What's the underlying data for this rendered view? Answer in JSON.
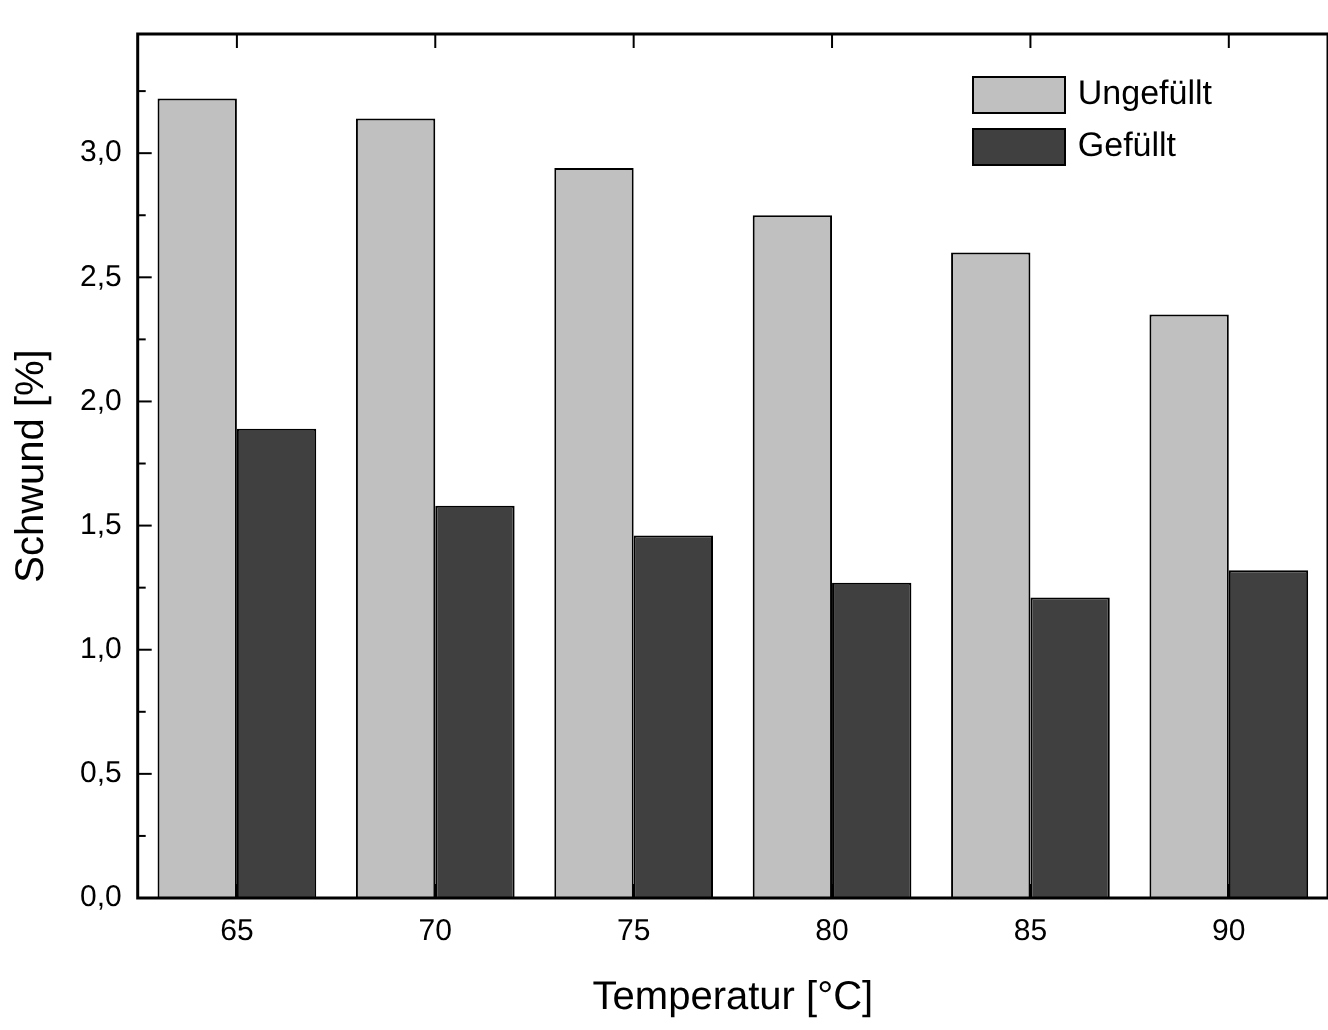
{
  "chart_data": {
    "type": "bar",
    "xlabel": "Temperatur [°C]",
    "ylabel": "Schwund [%]",
    "categories": [
      "65",
      "70",
      "75",
      "80",
      "85",
      "90"
    ],
    "series": [
      {
        "name": "Ungefüllt",
        "color": "#c0c0c0",
        "values": [
          3.22,
          3.14,
          2.94,
          2.75,
          2.6,
          2.35
        ]
      },
      {
        "name": "Gefüllt",
        "color": "#404040",
        "values": [
          1.89,
          1.58,
          1.46,
          1.27,
          1.21,
          1.32
        ]
      }
    ],
    "ylim": [
      0,
      3.48
    ],
    "yticks": [
      {
        "value": 0,
        "label": "0,0"
      },
      {
        "value": 0.25,
        "label": null
      },
      {
        "value": 0.5,
        "label": "0,5"
      },
      {
        "value": 0.75,
        "label": null
      },
      {
        "value": 1,
        "label": "1,0"
      },
      {
        "value": 1.25,
        "label": null
      },
      {
        "value": 1.5,
        "label": "1,5"
      },
      {
        "value": 1.75,
        "label": null
      },
      {
        "value": 2,
        "label": "2,0"
      },
      {
        "value": 2.25,
        "label": null
      },
      {
        "value": 2.5,
        "label": "2,5"
      },
      {
        "value": 2.75,
        "label": null
      },
      {
        "value": 3,
        "label": "3,0"
      },
      {
        "value": 3.25,
        "label": null
      }
    ],
    "grid": false,
    "legend": "top right"
  }
}
